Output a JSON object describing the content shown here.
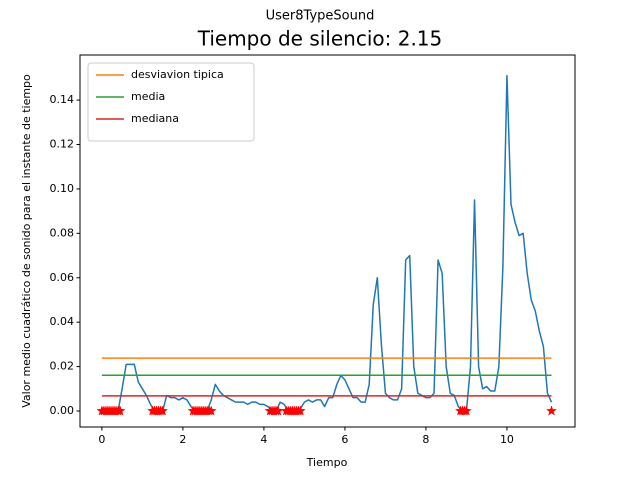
{
  "chart_data": {
    "type": "line",
    "suptitle": "User8TypeSound",
    "title": "Tiempo de silencio: 2.15",
    "x_label": "Tiempo",
    "y_label": "Valor medio cuadrático de sonido para el instante de tiempo",
    "xlim": [
      -0.54,
      11.68
    ],
    "ylim": [
      -0.0072,
      0.1603
    ],
    "xticks": [
      0,
      2,
      4,
      6,
      8,
      10
    ],
    "yticks": [
      {
        "value": 0,
        "label": "0.00"
      },
      {
        "value": 0.02,
        "label": "0.02"
      },
      {
        "value": 0.04,
        "label": "0.04"
      },
      {
        "value": 0.06,
        "label": "0.06"
      },
      {
        "value": 0.08,
        "label": "0.08"
      },
      {
        "value": 0.1,
        "label": "0.10"
      },
      {
        "value": 0.12,
        "label": "0.12"
      },
      {
        "value": 0.14,
        "label": "0.14"
      }
    ],
    "legend": "upper left",
    "series": [
      {
        "color": "#1f77b4",
        "marker": "none",
        "x": [
          0,
          0.1,
          0.2,
          0.3,
          0.4,
          0.5,
          0.6,
          0.7,
          0.8,
          0.9,
          1,
          1.1,
          1.2,
          1.3,
          1.4,
          1.5,
          1.6,
          1.7,
          1.8,
          1.9,
          2,
          2.1,
          2.2,
          2.3,
          2.4,
          2.5,
          2.6,
          2.7,
          2.8,
          2.9,
          3,
          3.1,
          3.2,
          3.3,
          3.4,
          3.5,
          3.6,
          3.7,
          3.8,
          3.9,
          4,
          4.1,
          4.2,
          4.3,
          4.4,
          4.5,
          4.6,
          4.7,
          4.8,
          4.9,
          5,
          5.1,
          5.2,
          5.3,
          5.4,
          5.5,
          5.6,
          5.7,
          5.8,
          5.9,
          6,
          6.1,
          6.2,
          6.3,
          6.4,
          6.5,
          6.6,
          6.7,
          6.8,
          6.9,
          7,
          7.1,
          7.2,
          7.3,
          7.4,
          7.5,
          7.6,
          7.7,
          7.8,
          7.9,
          8,
          8.1,
          8.2,
          8.3,
          8.4,
          8.5,
          8.6,
          8.7,
          8.8,
          8.9,
          9,
          9.1,
          9.2,
          9.3,
          9.4,
          9.5,
          9.6,
          9.7,
          9.8,
          9.9,
          10,
          10.1,
          10.2,
          10.3,
          10.4,
          10.5,
          10.6,
          10.7,
          10.8,
          10.9,
          11,
          11.1
        ],
        "values": [
          0,
          0,
          0,
          0,
          0,
          0.01,
          0.021,
          0.021,
          0.021,
          0.013,
          0.01,
          0.007,
          0.003,
          0,
          0,
          0,
          0.007,
          0.006,
          0.006,
          0.005,
          0.006,
          0.005,
          0.002,
          0,
          0,
          0,
          0,
          0.005,
          0.012,
          0.009,
          0.007,
          0.006,
          0.005,
          0.004,
          0.004,
          0.004,
          0.003,
          0.004,
          0.004,
          0.003,
          0.003,
          0.002,
          0,
          0,
          0.004,
          0.003,
          0,
          0,
          0,
          0.001,
          0.004,
          0.005,
          0.004,
          0.005,
          0.005,
          0.002,
          0.006,
          0.006,
          0.012,
          0.016,
          0.014,
          0.01,
          0.006,
          0.006,
          0.004,
          0.004,
          0.012,
          0.048,
          0.06,
          0.03,
          0.008,
          0.006,
          0.005,
          0.005,
          0.01,
          0.068,
          0.07,
          0.02,
          0.008,
          0.007,
          0.006,
          0.006,
          0.008,
          0.068,
          0.062,
          0.02,
          0.008,
          0.007,
          0.002,
          0,
          0,
          0.02,
          0.095,
          0.02,
          0.01,
          0.011,
          0.009,
          0.009,
          0.02,
          0.065,
          0.151,
          0.093,
          0.085,
          0.079,
          0.08,
          0.062,
          0.05,
          0.045,
          0.036,
          0.029,
          0.008,
          0.004
        ]
      },
      {
        "name": "desviavion tipica",
        "color": "#ff7f0e",
        "marker": "none",
        "x": [
          0,
          11.1
        ],
        "values": [
          0.0238,
          0.0238
        ]
      },
      {
        "name": "media",
        "color": "#2ca02c",
        "marker": "none",
        "x": [
          0,
          11.1
        ],
        "values": [
          0.0161,
          0.0161
        ]
      },
      {
        "name": "mediana",
        "color": "#d62728",
        "marker": "none",
        "x": [
          0,
          11.1
        ],
        "values": [
          0.0068,
          0.0068
        ]
      },
      {
        "color": "#ff0000",
        "marker": "star",
        "x": [
          0,
          0.05,
          0.1,
          0.15,
          0.2,
          0.25,
          0.3,
          0.35,
          0.4,
          0.45,
          1.25,
          1.3,
          1.35,
          1.4,
          1.45,
          1.5,
          2.25,
          2.3,
          2.35,
          2.4,
          2.45,
          2.5,
          2.55,
          2.6,
          2.65,
          2.7,
          4.15,
          4.2,
          4.25,
          4.3,
          4.35,
          4.55,
          4.6,
          4.65,
          4.7,
          4.75,
          4.8,
          4.85,
          4.9,
          8.85,
          8.9,
          8.95,
          9,
          11.1
        ],
        "values": [
          0,
          0,
          0,
          0,
          0,
          0,
          0,
          0,
          0,
          0,
          0,
          0,
          0,
          0,
          0,
          0,
          0,
          0,
          0,
          0,
          0,
          0,
          0,
          0,
          0,
          0,
          0,
          0,
          0,
          0,
          0,
          0,
          0,
          0,
          0,
          0,
          0,
          0,
          0,
          0,
          0,
          0,
          0,
          0
        ]
      }
    ]
  }
}
